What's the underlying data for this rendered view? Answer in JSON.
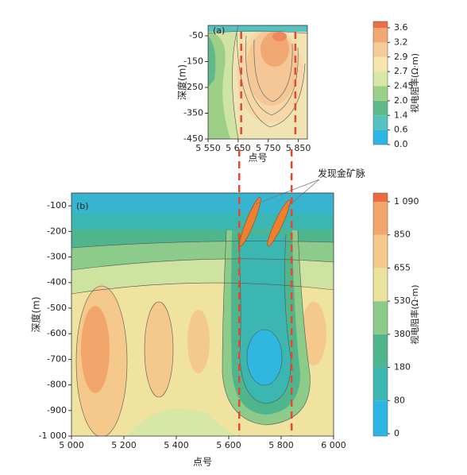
{
  "chart_data": [
    {
      "type": "contour",
      "panel_label": "(a)",
      "x_label": "点号",
      "y_label": "深度(m)",
      "xlim": [
        5550,
        5880
      ],
      "xticks": [
        {
          "value": 5550,
          "label": "5 550"
        },
        {
          "value": 5650,
          "label": "5 650"
        },
        {
          "value": 5750,
          "label": "5 750"
        },
        {
          "value": 5850,
          "label": "5 850"
        }
      ],
      "ylim": [
        -450,
        -10
      ],
      "yticks": [
        -50,
        -150,
        -250,
        -350,
        -450
      ],
      "marker_lines": [
        5660,
        5840
      ],
      "marker_color": "#e8472c",
      "colorbar": {
        "label": "视电阻率(Ω·m)",
        "levels": [
          {
            "value": 0,
            "label": "0.0"
          },
          0.6,
          1.4,
          {
            "value": 2,
            "label": "2.0"
          },
          2.45,
          2.7,
          2.9,
          3.2,
          3.6
        ],
        "colors": [
          "#2bb6e6",
          "#56c2bf",
          "#5fb98a",
          "#9ccf88",
          "#d7e7a6",
          "#f6e6ae",
          "#f5cc97",
          "#f2a873",
          "#ec6e47"
        ]
      }
    },
    {
      "type": "contour",
      "panel_label": "(b)",
      "x_label": "点号",
      "y_label": "深度(m)",
      "xlim": [
        5000,
        6000
      ],
      "xticks": [
        {
          "value": 5000,
          "label": "5 000"
        },
        {
          "value": 5200,
          "label": "5 200"
        },
        {
          "value": 5400,
          "label": "5 400"
        },
        {
          "value": 5600,
          "label": "5 600"
        },
        {
          "value": 5800,
          "label": "5 800"
        },
        {
          "value": 6000,
          "label": "6 000"
        }
      ],
      "ylim": [
        -1000,
        -50
      ],
      "yticks": [
        -100,
        -200,
        -300,
        -400,
        -500,
        -600,
        -700,
        -800,
        -900,
        {
          "value": -1000,
          "label": "-1 000"
        }
      ],
      "marker_lines": [
        5640,
        5840
      ],
      "marker_color": "#e8472c",
      "annotation": "发现金矿脉",
      "colorbar": {
        "label": "视电阻率(Ω·m)",
        "levels": [
          0,
          80,
          180,
          380,
          530,
          655,
          850,
          {
            "value": 1090,
            "label": "1 090"
          }
        ],
        "colors": [
          "#2bb6e6",
          "#3bb6b0",
          "#4fb58c",
          "#8ccb8a",
          "#e9e39d",
          "#f5c98c",
          "#f2a66c",
          "#ec6a3e"
        ]
      }
    }
  ]
}
